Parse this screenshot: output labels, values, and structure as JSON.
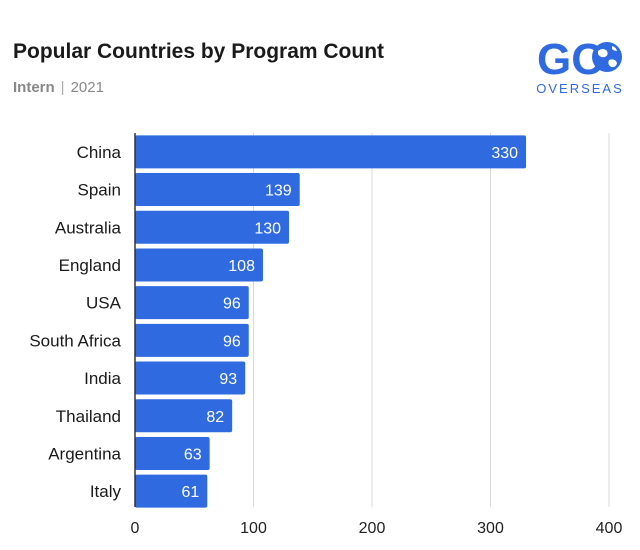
{
  "header": {
    "title": "Popular Countries by Program Count",
    "category": "Intern",
    "separator": "|",
    "year": "2021"
  },
  "logo": {
    "main": "GO",
    "sub": "OVERSEAS",
    "icon": "globe-icon",
    "color": "#2f6ae0"
  },
  "chart_data": {
    "type": "bar",
    "orientation": "horizontal",
    "title": "Popular Countries by Program Count",
    "subtitle": "Intern | 2021",
    "categories": [
      "China",
      "Spain",
      "Australia",
      "England",
      "USA",
      "South Africa",
      "India",
      "Thailand",
      "Argentina",
      "Italy"
    ],
    "values": [
      330,
      139,
      130,
      108,
      96,
      96,
      93,
      82,
      63,
      61
    ],
    "xlim": [
      0,
      400
    ],
    "xticks": [
      0,
      100,
      200,
      300,
      400
    ],
    "xlabel": "",
    "ylabel": "",
    "grid": "vertical",
    "data_labels": "inside-end",
    "bar_color": "#2f6ae0",
    "label_color": "#ffffff"
  }
}
